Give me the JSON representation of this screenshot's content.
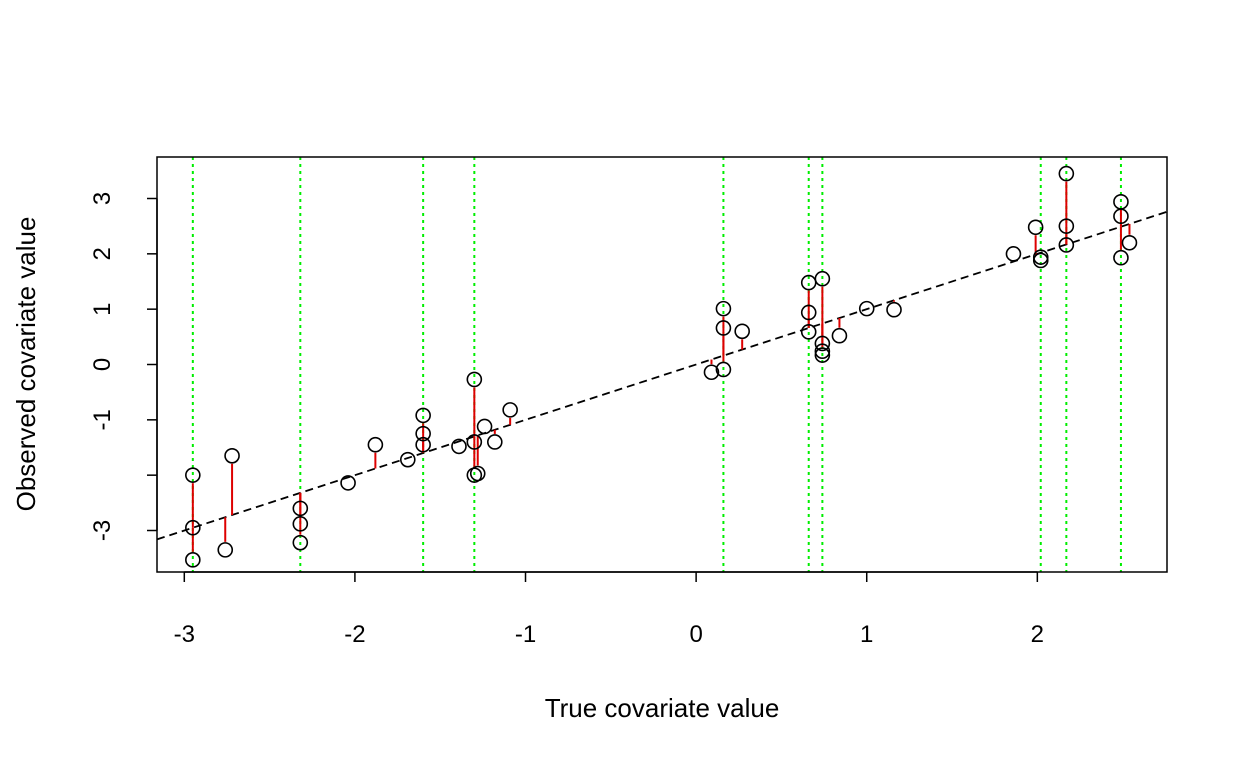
{
  "chart_data": {
    "type": "scatter",
    "title": "",
    "xlabel": "True covariate value",
    "ylabel": "Observed covariate value",
    "xlim": [
      -3.16,
      2.76
    ],
    "ylim": [
      -3.75,
      3.75
    ],
    "xticks": [
      -3,
      -2,
      -1,
      0,
      1,
      2
    ],
    "yticks": [
      -3,
      -1,
      0,
      1,
      2,
      3
    ],
    "ytick_labels": [
      "-3",
      "-1",
      "0",
      "1",
      "2",
      "3"
    ],
    "reference_line": {
      "slope": 1,
      "intercept": 0,
      "style": "dashed",
      "color": "#000000"
    },
    "vertical_lines_x": [
      -2.95,
      -2.32,
      -1.6,
      -1.3,
      0.16,
      0.66,
      0.74,
      2.02,
      2.17,
      2.49
    ],
    "points": [
      {
        "x": -2.95,
        "y": -2.0
      },
      {
        "x": -2.95,
        "y": -2.95
      },
      {
        "x": -2.95,
        "y": -3.53
      },
      {
        "x": -2.76,
        "y": -3.35
      },
      {
        "x": -2.72,
        "y": -1.65
      },
      {
        "x": -2.32,
        "y": -2.6
      },
      {
        "x": -2.32,
        "y": -2.88
      },
      {
        "x": -2.32,
        "y": -3.22
      },
      {
        "x": -2.04,
        "y": -2.14
      },
      {
        "x": -1.88,
        "y": -1.45
      },
      {
        "x": -1.69,
        "y": -1.72
      },
      {
        "x": -1.6,
        "y": -0.92
      },
      {
        "x": -1.6,
        "y": -1.25
      },
      {
        "x": -1.6,
        "y": -1.45
      },
      {
        "x": -1.39,
        "y": -1.48
      },
      {
        "x": -1.3,
        "y": -0.27
      },
      {
        "x": -1.3,
        "y": -1.4
      },
      {
        "x": -1.3,
        "y": -2.0
      },
      {
        "x": -1.28,
        "y": -1.97
      },
      {
        "x": -1.24,
        "y": -1.12
      },
      {
        "x": -1.18,
        "y": -1.4
      },
      {
        "x": -1.09,
        "y": -0.82
      },
      {
        "x": 0.09,
        "y": -0.14
      },
      {
        "x": 0.16,
        "y": 1.01
      },
      {
        "x": 0.16,
        "y": 0.66
      },
      {
        "x": 0.16,
        "y": -0.09
      },
      {
        "x": 0.27,
        "y": 0.6
      },
      {
        "x": 0.66,
        "y": 1.48
      },
      {
        "x": 0.66,
        "y": 0.94
      },
      {
        "x": 0.66,
        "y": 0.59
      },
      {
        "x": 0.74,
        "y": 1.55
      },
      {
        "x": 0.74,
        "y": 0.38
      },
      {
        "x": 0.74,
        "y": 0.24
      },
      {
        "x": 0.74,
        "y": 0.17
      },
      {
        "x": 0.84,
        "y": 0.52
      },
      {
        "x": 1.0,
        "y": 1.01
      },
      {
        "x": 1.16,
        "y": 0.99
      },
      {
        "x": 1.86,
        "y": 2.0
      },
      {
        "x": 1.99,
        "y": 2.48
      },
      {
        "x": 2.02,
        "y": 1.94
      },
      {
        "x": 2.02,
        "y": 1.88
      },
      {
        "x": 2.17,
        "y": 3.45
      },
      {
        "x": 2.17,
        "y": 2.5
      },
      {
        "x": 2.17,
        "y": 2.16
      },
      {
        "x": 2.49,
        "y": 2.94
      },
      {
        "x": 2.49,
        "y": 2.68
      },
      {
        "x": 2.49,
        "y": 1.93
      },
      {
        "x": 2.54,
        "y": 2.2
      }
    ],
    "colors": {
      "points": "#000000",
      "residual_segments": "#dd0000",
      "vertical_lines": "#00ee00",
      "reference_line": "#000000"
    }
  }
}
